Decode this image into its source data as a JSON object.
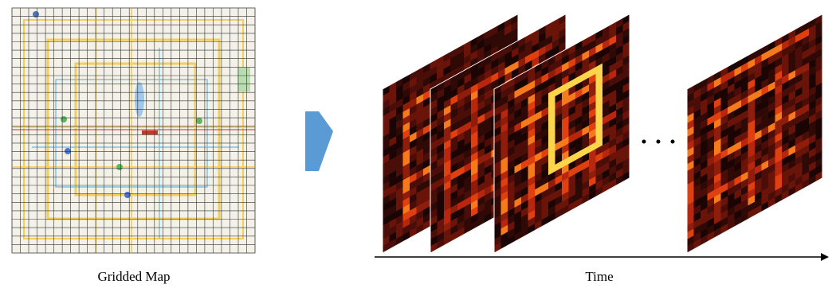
{
  "left_caption": "Gridded Map",
  "right_caption": "Time"
}
